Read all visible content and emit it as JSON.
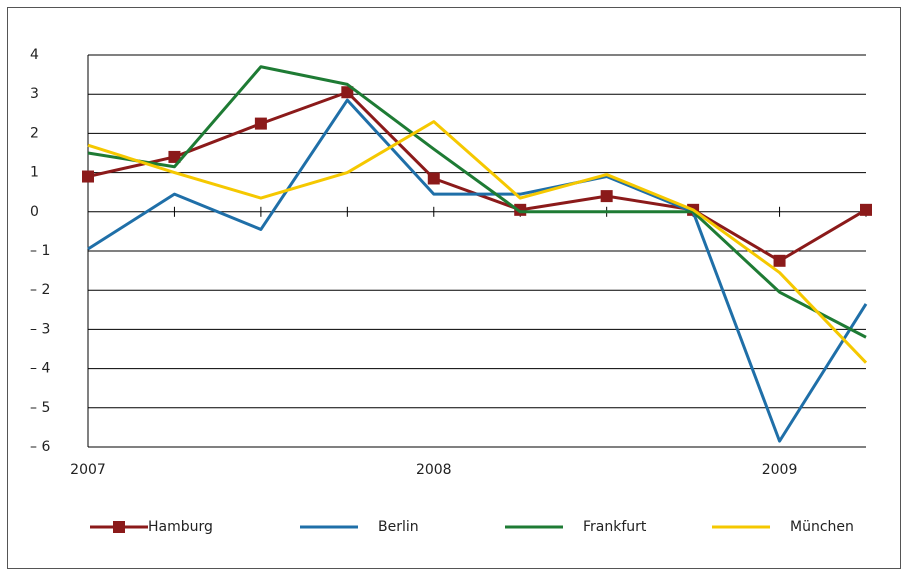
{
  "chart_data": {
    "type": "line",
    "categories": [
      "2007",
      null,
      null,
      null,
      "2008",
      null,
      null,
      null,
      "2009",
      null
    ],
    "series": [
      {
        "name": "Hamburg",
        "color": "#8b1a1a",
        "marker": "square",
        "values": [
          0.9,
          1.4,
          2.25,
          3.05,
          0.85,
          0.05,
          0.4,
          0.05,
          -1.25,
          0.05
        ]
      },
      {
        "name": "Berlin",
        "color": "#1f6fa8",
        "values": [
          -0.95,
          0.45,
          -0.45,
          2.85,
          0.45,
          0.45,
          0.9,
          0,
          -5.85,
          -2.35
        ]
      },
      {
        "name": "Frankfurt",
        "color": "#1e7b34",
        "values": [
          1.5,
          1.15,
          3.7,
          3.25,
          1.6,
          0,
          0,
          0,
          -2.05,
          -3.2
        ]
      },
      {
        "name": "München",
        "color": "#f5c800",
        "values": [
          1.7,
          1.0,
          0.35,
          1.0,
          2.3,
          0.35,
          0.95,
          0.05,
          -1.55,
          -3.85
        ]
      }
    ],
    "ylim": [
      -6,
      4
    ],
    "yticks": [
      4,
      3,
      2,
      1,
      0,
      {
        "value": -1,
        "label": "– 1"
      },
      {
        "value": -2,
        "label": "– 2"
      },
      {
        "value": -3,
        "label": "– 3"
      },
      {
        "value": -4,
        "label": "– 4"
      },
      {
        "value": -5,
        "label": "– 5"
      },
      {
        "value": -6,
        "label": "– 6"
      }
    ],
    "grid": true,
    "legend": "bottom"
  }
}
